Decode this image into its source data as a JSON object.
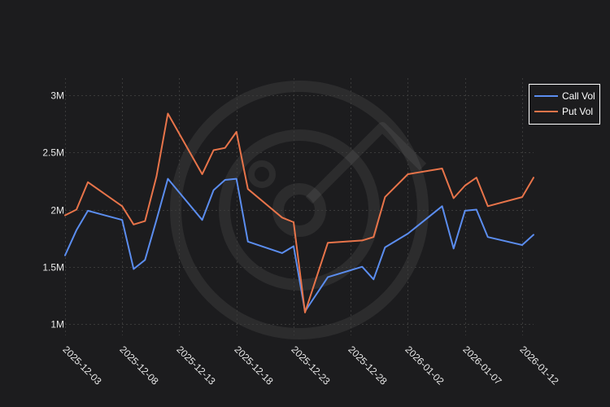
{
  "chart_data": {
    "type": "line",
    "title": "",
    "xlabel": "",
    "ylabel": "",
    "x": [
      "2025-12-03",
      "2025-12-04",
      "2025-12-05",
      "2025-12-08",
      "2025-12-09",
      "2025-12-10",
      "2025-12-11",
      "2025-12-12",
      "2025-12-15",
      "2025-12-16",
      "2025-12-17",
      "2025-12-18",
      "2025-12-19",
      "2025-12-22",
      "2025-12-23",
      "2025-12-24",
      "2025-12-26",
      "2025-12-29",
      "2025-12-30",
      "2025-12-31",
      "2026-01-02",
      "2026-01-05",
      "2026-01-06",
      "2026-01-07",
      "2026-01-08",
      "2026-01-09",
      "2026-01-12",
      "2026-01-13"
    ],
    "series": [
      {
        "name": "Call Vol",
        "color": "#5b8def",
        "values": [
          1600000,
          1820000,
          1990000,
          1910000,
          1480000,
          1560000,
          1910000,
          2270000,
          1910000,
          2170000,
          2260000,
          2270000,
          1720000,
          1620000,
          1680000,
          1110000,
          1410000,
          1500000,
          1390000,
          1670000,
          1790000,
          2030000,
          1660000,
          1990000,
          2000000,
          1760000,
          1690000,
          1780000
        ]
      },
      {
        "name": "Put Vol",
        "color": "#e8744a",
        "values": [
          1950000,
          2000000,
          2240000,
          2030000,
          1870000,
          1900000,
          2290000,
          2840000,
          2310000,
          2520000,
          2540000,
          2680000,
          2180000,
          1930000,
          1890000,
          1100000,
          1710000,
          1730000,
          1760000,
          2110000,
          2310000,
          2360000,
          2100000,
          2210000,
          2280000,
          2030000,
          2110000,
          2280000
        ]
      }
    ],
    "xticks": [
      "2025-12-03",
      "2025-12-08",
      "2025-12-13",
      "2025-12-18",
      "2025-12-23",
      "2025-12-28",
      "2026-01-02",
      "2026-01-07",
      "2026-01-12"
    ],
    "yticks": [
      {
        "value": 1000000,
        "label": "1M"
      },
      {
        "value": 1500000,
        "label": "1.5M"
      },
      {
        "value": 2000000,
        "label": "2M"
      },
      {
        "value": 2500000,
        "label": "2.5M"
      },
      {
        "value": 3000000,
        "label": "3M"
      }
    ],
    "ylim": [
      900000,
      3150000
    ],
    "xlim": [
      "2025-12-03",
      "2026-01-13"
    ],
    "grid": true,
    "legend_position": "top-right",
    "theme": {
      "background": "#1c1c1e",
      "text": "#e8e8e8",
      "grid": "#3a3a3a",
      "legend_border": "#ffffff"
    }
  }
}
